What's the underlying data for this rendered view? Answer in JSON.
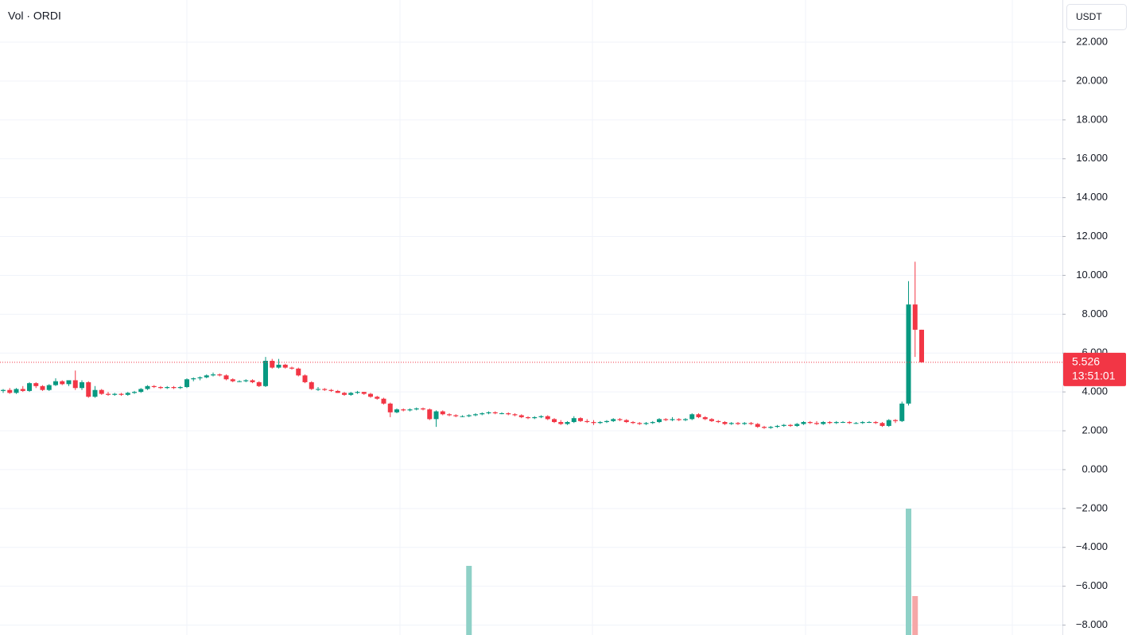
{
  "chart_data": {
    "type": "candlestick",
    "title": "Vol · ORDI",
    "currency": "USDT",
    "countdown": "13:51:01",
    "last_price": 5.526,
    "up_color": "#089981",
    "down_color": "#f23645",
    "volume_up_color": "#8fd1c7",
    "volume_down_color": "#f5a7a7",
    "ylim": [
      -8.51,
      24.17
    ],
    "yticks": [
      {
        "value": 22,
        "label": "22.000"
      },
      {
        "value": 20,
        "label": "20.000"
      },
      {
        "value": 18,
        "label": "18.000"
      },
      {
        "value": 16,
        "label": "16.000"
      },
      {
        "value": 14,
        "label": "14.000"
      },
      {
        "value": 12,
        "label": "12.000"
      },
      {
        "value": 10,
        "label": "10.000"
      },
      {
        "value": 8,
        "label": "8.000"
      },
      {
        "value": 6,
        "label": "6.000"
      },
      {
        "value": 4,
        "label": "4.000"
      },
      {
        "value": 2,
        "label": "2.000"
      },
      {
        "value": 0,
        "label": "0.000"
      },
      {
        "value": -2,
        "label": "−2.000"
      },
      {
        "value": -4,
        "label": "−4.000"
      },
      {
        "value": -6,
        "label": "−6.000"
      },
      {
        "value": -8,
        "label": "−8.000"
      }
    ],
    "grid": true,
    "ohlc": [
      [
        4.05,
        4.15,
        3.95,
        4.1
      ],
      [
        4.1,
        4.2,
        3.9,
        3.95
      ],
      [
        3.95,
        4.2,
        3.9,
        4.15
      ],
      [
        4.15,
        4.3,
        4.0,
        4.05
      ],
      [
        4.05,
        4.5,
        4.0,
        4.45
      ],
      [
        4.45,
        4.5,
        4.2,
        4.3
      ],
      [
        4.3,
        4.35,
        4.05,
        4.1
      ],
      [
        4.1,
        4.4,
        4.05,
        4.35
      ],
      [
        4.35,
        4.7,
        4.3,
        4.55
      ],
      [
        4.55,
        4.6,
        4.35,
        4.4
      ],
      [
        4.4,
        4.6,
        4.3,
        4.6
      ],
      [
        4.6,
        5.1,
        4.1,
        4.2
      ],
      [
        4.2,
        4.6,
        4.1,
        4.5
      ],
      [
        4.5,
        4.55,
        3.7,
        3.75
      ],
      [
        3.75,
        4.3,
        3.7,
        4.1
      ],
      [
        4.1,
        4.15,
        3.85,
        3.9
      ],
      [
        3.9,
        4.0,
        3.8,
        3.85
      ],
      [
        3.85,
        3.95,
        3.8,
        3.9
      ],
      [
        3.9,
        3.95,
        3.8,
        3.85
      ],
      [
        3.85,
        4.0,
        3.8,
        3.95
      ],
      [
        3.95,
        4.05,
        3.9,
        4.0
      ],
      [
        4.0,
        4.2,
        3.95,
        4.15
      ],
      [
        4.15,
        4.35,
        4.1,
        4.3
      ],
      [
        4.3,
        4.35,
        4.2,
        4.25
      ],
      [
        4.25,
        4.3,
        4.15,
        4.2
      ],
      [
        4.2,
        4.3,
        4.15,
        4.25
      ],
      [
        4.25,
        4.3,
        4.15,
        4.2
      ],
      [
        4.2,
        4.3,
        4.15,
        4.25
      ],
      [
        4.25,
        4.7,
        4.2,
        4.65
      ],
      [
        4.65,
        4.75,
        4.55,
        4.7
      ],
      [
        4.7,
        4.8,
        4.6,
        4.75
      ],
      [
        4.75,
        4.9,
        4.7,
        4.85
      ],
      [
        4.85,
        5.0,
        4.8,
        4.9
      ],
      [
        4.9,
        4.95,
        4.8,
        4.85
      ],
      [
        4.85,
        4.9,
        4.6,
        4.65
      ],
      [
        4.65,
        4.7,
        4.5,
        4.55
      ],
      [
        4.55,
        4.6,
        4.5,
        4.55
      ],
      [
        4.55,
        4.65,
        4.5,
        4.6
      ],
      [
        4.6,
        4.65,
        4.45,
        4.5
      ],
      [
        4.5,
        4.55,
        4.25,
        4.3
      ],
      [
        4.3,
        5.8,
        4.25,
        5.6
      ],
      [
        5.6,
        5.7,
        5.2,
        5.25
      ],
      [
        5.25,
        5.7,
        5.2,
        5.4
      ],
      [
        5.4,
        5.45,
        5.2,
        5.25
      ],
      [
        5.25,
        5.3,
        5.15,
        5.2
      ],
      [
        5.2,
        5.25,
        4.8,
        4.85
      ],
      [
        4.85,
        4.9,
        4.45,
        4.5
      ],
      [
        4.5,
        4.55,
        4.1,
        4.15
      ],
      [
        4.15,
        4.25,
        4.05,
        4.15
      ],
      [
        4.15,
        4.2,
        4.05,
        4.1
      ],
      [
        4.1,
        4.15,
        4.0,
        4.05
      ],
      [
        4.05,
        4.1,
        3.95,
        3.95
      ],
      [
        3.95,
        4.0,
        3.8,
        3.85
      ],
      [
        3.85,
        4.0,
        3.8,
        3.95
      ],
      [
        3.95,
        4.05,
        3.9,
        4.0
      ],
      [
        4.0,
        4.0,
        3.85,
        3.9
      ],
      [
        3.9,
        3.95,
        3.7,
        3.75
      ],
      [
        3.75,
        3.8,
        3.6,
        3.65
      ],
      [
        3.65,
        3.7,
        3.35,
        3.4
      ],
      [
        3.4,
        3.45,
        2.7,
        2.95
      ],
      [
        2.95,
        3.15,
        2.9,
        3.1
      ],
      [
        3.1,
        3.15,
        3.0,
        3.05
      ],
      [
        3.05,
        3.15,
        3.0,
        3.1
      ],
      [
        3.1,
        3.2,
        3.05,
        3.15
      ],
      [
        3.15,
        3.2,
        3.05,
        3.1
      ],
      [
        3.1,
        3.15,
        2.55,
        2.6
      ],
      [
        2.6,
        3.05,
        2.2,
        3.0
      ],
      [
        3.0,
        3.05,
        2.8,
        2.85
      ],
      [
        2.85,
        2.9,
        2.75,
        2.8
      ],
      [
        2.8,
        2.85,
        2.7,
        2.75
      ],
      [
        2.75,
        2.8,
        2.7,
        2.75
      ],
      [
        2.75,
        2.85,
        2.7,
        2.8
      ],
      [
        2.8,
        2.9,
        2.75,
        2.85
      ],
      [
        2.85,
        2.95,
        2.8,
        2.9
      ],
      [
        2.9,
        3.0,
        2.85,
        2.95
      ],
      [
        2.95,
        3.0,
        2.85,
        2.9
      ],
      [
        2.9,
        2.95,
        2.85,
        2.9
      ],
      [
        2.9,
        2.95,
        2.8,
        2.85
      ],
      [
        2.85,
        2.9,
        2.75,
        2.8
      ],
      [
        2.8,
        2.85,
        2.65,
        2.7
      ],
      [
        2.7,
        2.75,
        2.6,
        2.65
      ],
      [
        2.65,
        2.75,
        2.6,
        2.7
      ],
      [
        2.7,
        2.8,
        2.65,
        2.75
      ],
      [
        2.75,
        2.8,
        2.55,
        2.6
      ],
      [
        2.6,
        2.65,
        2.4,
        2.45
      ],
      [
        2.45,
        2.55,
        2.3,
        2.35
      ],
      [
        2.35,
        2.5,
        2.3,
        2.45
      ],
      [
        2.45,
        2.75,
        2.4,
        2.65
      ],
      [
        2.65,
        2.7,
        2.45,
        2.5
      ],
      [
        2.5,
        2.6,
        2.4,
        2.45
      ],
      [
        2.45,
        2.55,
        2.3,
        2.4
      ],
      [
        2.4,
        2.5,
        2.35,
        2.45
      ],
      [
        2.45,
        2.55,
        2.4,
        2.5
      ],
      [
        2.5,
        2.65,
        2.45,
        2.6
      ],
      [
        2.6,
        2.65,
        2.5,
        2.55
      ],
      [
        2.55,
        2.6,
        2.4,
        2.45
      ],
      [
        2.45,
        2.5,
        2.35,
        2.4
      ],
      [
        2.4,
        2.45,
        2.3,
        2.35
      ],
      [
        2.35,
        2.45,
        2.3,
        2.4
      ],
      [
        2.4,
        2.5,
        2.35,
        2.45
      ],
      [
        2.45,
        2.65,
        2.4,
        2.6
      ],
      [
        2.6,
        2.65,
        2.5,
        2.55
      ],
      [
        2.55,
        2.7,
        2.5,
        2.6
      ],
      [
        2.6,
        2.65,
        2.5,
        2.55
      ],
      [
        2.55,
        2.65,
        2.5,
        2.6
      ],
      [
        2.6,
        2.9,
        2.55,
        2.85
      ],
      [
        2.85,
        2.9,
        2.65,
        2.7
      ],
      [
        2.7,
        2.75,
        2.55,
        2.6
      ],
      [
        2.6,
        2.65,
        2.45,
        2.5
      ],
      [
        2.5,
        2.55,
        2.4,
        2.45
      ],
      [
        2.45,
        2.5,
        2.3,
        2.35
      ],
      [
        2.35,
        2.45,
        2.3,
        2.4
      ],
      [
        2.4,
        2.45,
        2.3,
        2.35
      ],
      [
        2.35,
        2.45,
        2.3,
        2.4
      ],
      [
        2.4,
        2.45,
        2.3,
        2.35
      ],
      [
        2.35,
        2.4,
        2.15,
        2.2
      ],
      [
        2.2,
        2.25,
        2.1,
        2.15
      ],
      [
        2.15,
        2.25,
        2.1,
        2.2
      ],
      [
        2.2,
        2.3,
        2.15,
        2.25
      ],
      [
        2.25,
        2.35,
        2.2,
        2.3
      ],
      [
        2.3,
        2.35,
        2.2,
        2.25
      ],
      [
        2.25,
        2.4,
        2.2,
        2.35
      ],
      [
        2.35,
        2.5,
        2.3,
        2.45
      ],
      [
        2.45,
        2.5,
        2.35,
        2.4
      ],
      [
        2.4,
        2.5,
        2.3,
        2.35
      ],
      [
        2.35,
        2.5,
        2.3,
        2.45
      ],
      [
        2.45,
        2.5,
        2.35,
        2.4
      ],
      [
        2.4,
        2.5,
        2.35,
        2.45
      ],
      [
        2.45,
        2.5,
        2.4,
        2.45
      ],
      [
        2.45,
        2.5,
        2.35,
        2.4
      ],
      [
        2.4,
        2.45,
        2.35,
        2.4
      ],
      [
        2.4,
        2.5,
        2.35,
        2.45
      ],
      [
        2.45,
        2.5,
        2.4,
        2.45
      ],
      [
        2.45,
        2.5,
        2.35,
        2.4
      ],
      [
        2.4,
        2.45,
        2.2,
        2.25
      ],
      [
        2.25,
        2.6,
        2.2,
        2.55
      ],
      [
        2.55,
        2.6,
        2.4,
        2.5
      ],
      [
        2.5,
        3.5,
        2.45,
        3.4
      ],
      [
        3.4,
        9.7,
        3.3,
        8.5
      ],
      [
        8.5,
        10.7,
        5.8,
        7.2
      ],
      [
        7.2,
        7.2,
        5.5,
        5.526
      ]
    ],
    "volume": [
      null,
      null,
      null,
      null,
      null,
      null,
      null,
      null,
      null,
      null,
      null,
      null,
      null,
      null,
      null,
      null,
      null,
      null,
      null,
      null,
      null,
      null,
      null,
      null,
      null,
      null,
      null,
      null,
      null,
      null,
      null,
      null,
      null,
      null,
      null,
      null,
      null,
      null,
      null,
      null,
      null,
      null,
      null,
      null,
      null,
      null,
      null,
      null,
      null,
      null,
      null,
      null,
      null,
      null,
      null,
      null,
      null,
      null,
      null,
      null,
      null,
      null,
      null,
      null,
      null,
      null,
      null,
      null,
      null,
      null,
      null,
      87,
      null,
      null,
      null,
      null,
      null,
      null,
      null,
      null,
      null,
      null,
      null,
      null,
      null,
      null,
      null,
      null,
      null,
      null,
      null,
      null,
      null,
      null,
      null,
      null,
      null,
      null,
      null,
      null,
      null,
      null,
      null,
      null,
      null,
      null,
      null,
      null,
      null,
      null,
      null,
      null,
      null,
      null,
      null,
      null,
      null,
      null,
      null,
      null,
      null,
      null,
      null,
      null,
      null,
      null,
      null,
      null,
      null,
      null,
      null,
      null,
      null,
      null,
      null,
      null,
      null,
      null,
      159,
      49,
      null
    ]
  }
}
